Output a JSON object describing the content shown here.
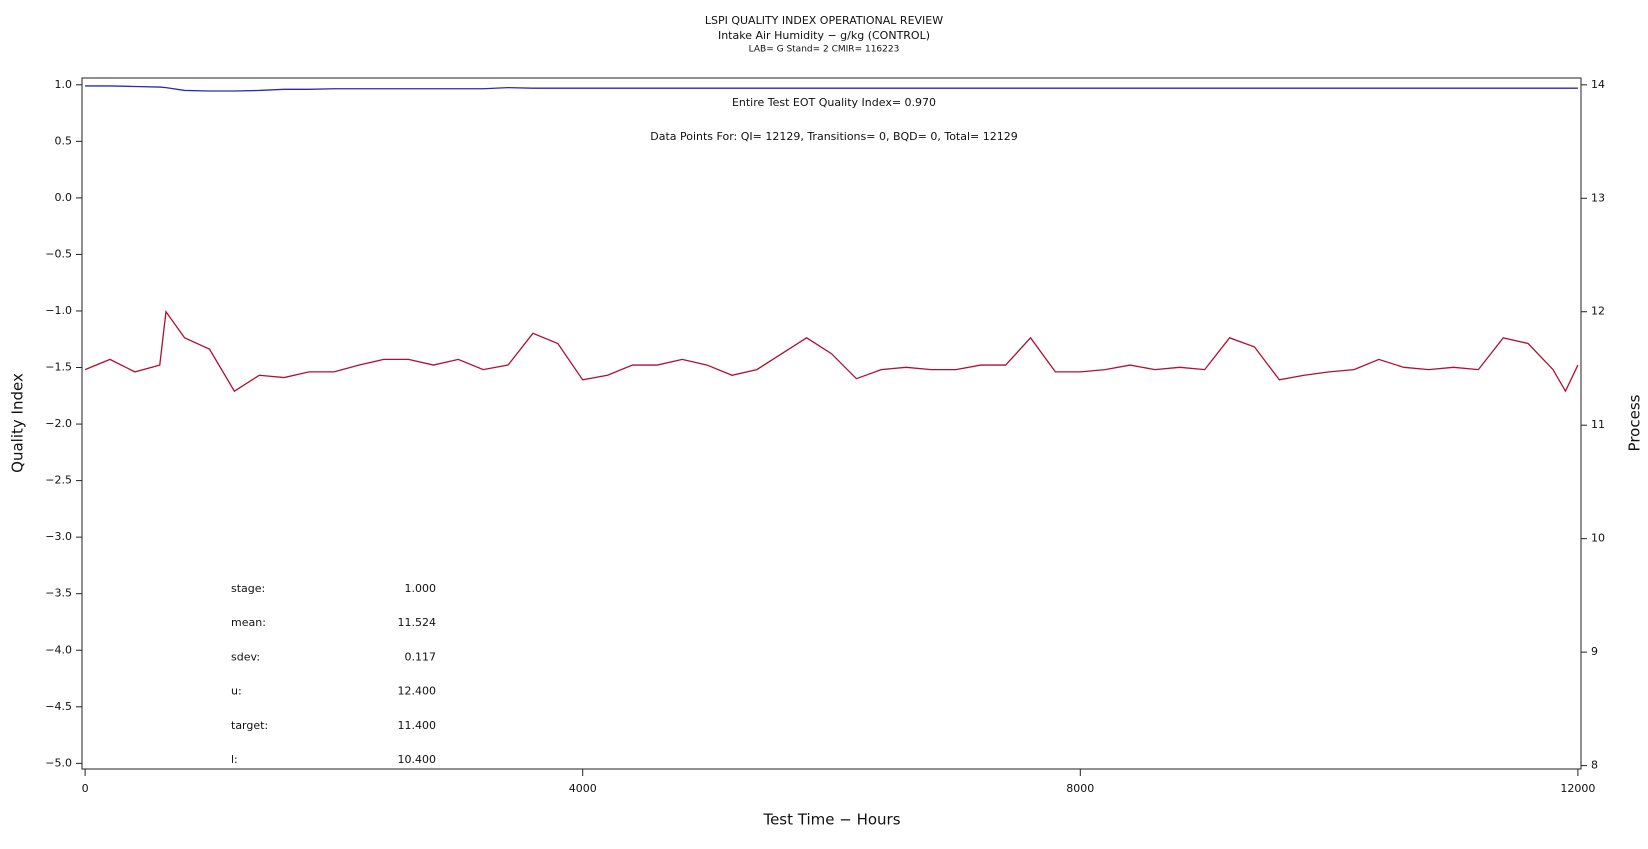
{
  "chart_data": {
    "type": "line",
    "title": "LSPI QUALITY INDEX OPERATIONAL REVIEW",
    "subtitle": "Intake Air Humidity − g/kg (CONTROL)",
    "subtitle2": "LAB= G Stand= 2 CMIR= 116223",
    "xlabel": "Test Time − Hours",
    "ylabel": "Quality Index",
    "y2label": "Process",
    "annotations": [
      "Entire Test EOT Quality Index=   0.970",
      "Data Points For: QI= 12129, Transitions=     0, BQD=     0, Total= 12129"
    ],
    "stats": [
      {
        "label": "stage:",
        "value": "1.000"
      },
      {
        "label": "mean:",
        "value": "11.524"
      },
      {
        "label": "sdev:",
        "value": "0.117"
      },
      {
        "label": "u:",
        "value": "12.400"
      },
      {
        "label": "target:",
        "value": "11.400"
      },
      {
        "label": "l:",
        "value": "10.400"
      }
    ],
    "xlim": [
      -25,
      12025
    ],
    "xticks": [
      0,
      4000,
      8000,
      12000
    ],
    "ylim": [
      -5.05,
      1.06
    ],
    "yticks": [
      {
        "value": -5,
        "label": "−5.0"
      },
      {
        "value": -4.5,
        "label": "−4.5"
      },
      {
        "value": -4,
        "label": "−4.0"
      },
      {
        "value": -3.5,
        "label": "−3.5"
      },
      {
        "value": -3,
        "label": "−3.0"
      },
      {
        "value": -2.5,
        "label": "−2.5"
      },
      {
        "value": -2,
        "label": "−2.0"
      },
      {
        "value": -1.5,
        "label": "−1.5"
      },
      {
        "value": -1,
        "label": "−1.0"
      },
      {
        "value": -0.5,
        "label": "−0.5"
      },
      {
        "value": 0,
        "label": "0.0"
      },
      {
        "value": 0.5,
        "label": "0.5"
      },
      {
        "value": 1,
        "label": "1.0"
      }
    ],
    "y2lim": [
      7.97,
      14.06
    ],
    "y2ticks": [
      8,
      9,
      10,
      11,
      12,
      13,
      14
    ],
    "x": [
      0,
      200,
      400,
      600,
      650,
      800,
      1000,
      1200,
      1400,
      1600,
      1800,
      2000,
      2200,
      2400,
      2600,
      2800,
      3000,
      3200,
      3400,
      3600,
      3800,
      4000,
      4200,
      4400,
      4600,
      4800,
      5000,
      5200,
      5400,
      5600,
      5800,
      6000,
      6200,
      6400,
      6600,
      6800,
      7000,
      7200,
      7400,
      7600,
      7800,
      8000,
      8200,
      8400,
      8600,
      8800,
      9000,
      9200,
      9400,
      9600,
      9800,
      10000,
      10200,
      10400,
      10600,
      10800,
      11000,
      11200,
      11400,
      11600,
      11800,
      11900,
      12000
    ],
    "series": [
      {
        "name": "Quality Index",
        "color": "#2a2ab8",
        "axis": "y",
        "values": [
          0.99,
          0.99,
          0.985,
          0.98,
          0.975,
          0.95,
          0.945,
          0.945,
          0.95,
          0.96,
          0.96,
          0.965,
          0.965,
          0.965,
          0.965,
          0.965,
          0.965,
          0.965,
          0.975,
          0.97,
          0.97,
          0.97,
          0.97,
          0.97,
          0.97,
          0.97,
          0.97,
          0.97,
          0.97,
          0.97,
          0.97,
          0.97,
          0.97,
          0.97,
          0.97,
          0.97,
          0.97,
          0.97,
          0.97,
          0.97,
          0.97,
          0.97,
          0.97,
          0.97,
          0.97,
          0.97,
          0.97,
          0.97,
          0.97,
          0.97,
          0.97,
          0.97,
          0.97,
          0.97,
          0.97,
          0.97,
          0.97,
          0.97,
          0.97,
          0.97,
          0.97,
          0.97,
          0.97
        ]
      },
      {
        "name": "Process",
        "color": "#b01030",
        "axis": "y2",
        "values": [
          11.49,
          11.58,
          11.47,
          11.53,
          12.0,
          11.77,
          11.67,
          11.3,
          11.44,
          11.42,
          11.47,
          11.47,
          11.53,
          11.58,
          11.58,
          11.53,
          11.58,
          11.49,
          11.53,
          11.81,
          11.72,
          11.4,
          11.44,
          11.53,
          11.53,
          11.58,
          11.53,
          11.44,
          11.49,
          11.63,
          11.77,
          11.63,
          11.41,
          11.49,
          11.51,
          11.49,
          11.49,
          11.53,
          11.53,
          11.77,
          11.47,
          11.47,
          11.49,
          11.53,
          11.49,
          11.51,
          11.49,
          11.77,
          11.69,
          11.4,
          11.44,
          11.47,
          11.49,
          11.58,
          11.51,
          11.49,
          11.51,
          11.49,
          11.77,
          11.72,
          11.49,
          11.3,
          11.53
        ]
      }
    ]
  }
}
